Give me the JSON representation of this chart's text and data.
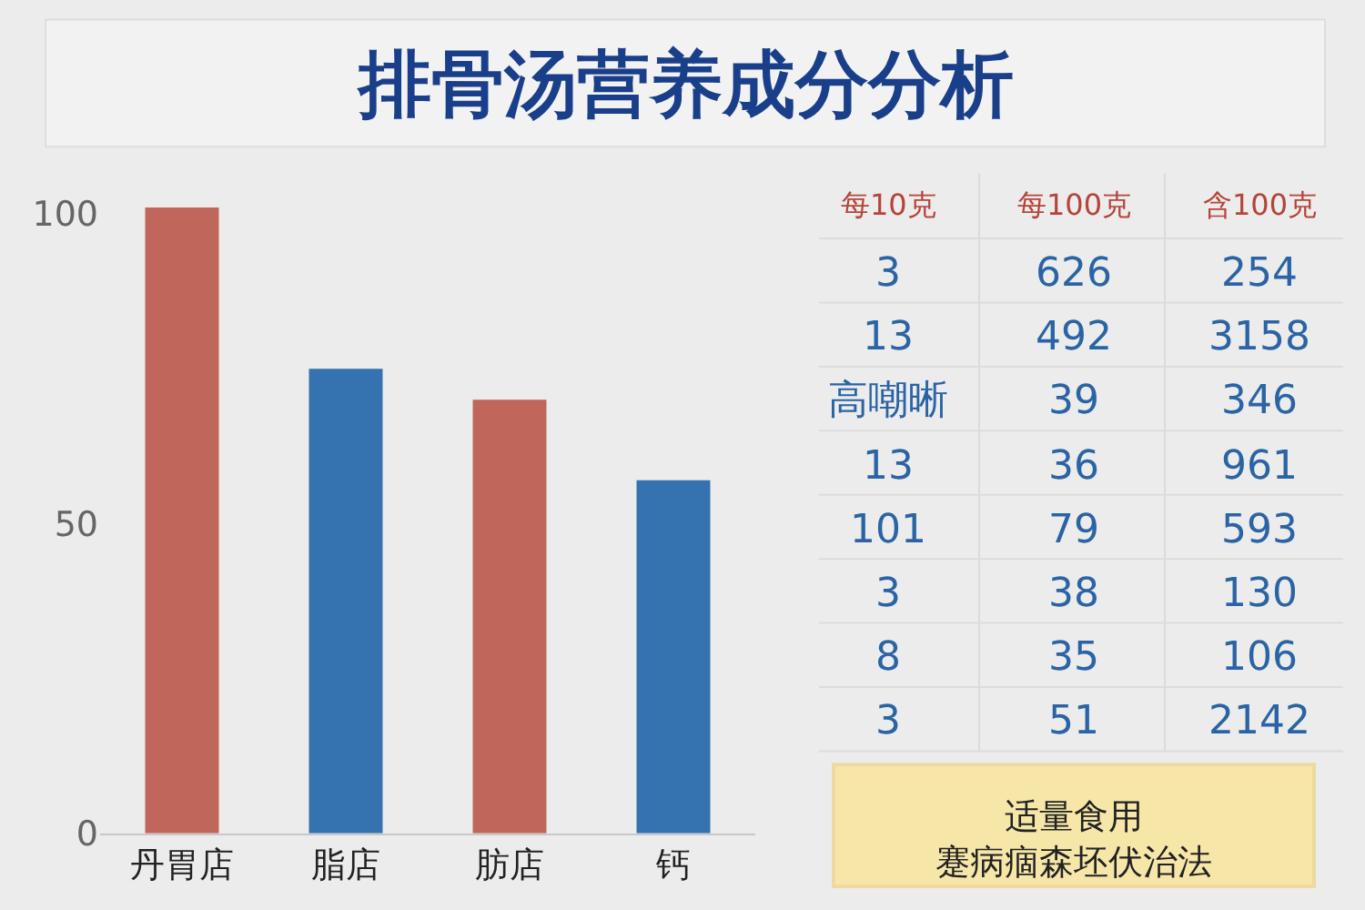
{
  "chart_data": [
    {
      "type": "bar",
      "title": "排骨汤营养成分分析",
      "categories": [
        "丹胃店",
        "脂店",
        "肪店",
        "钙"
      ],
      "values": [
        101,
        75,
        70,
        57
      ],
      "colors": [
        "#c0665a",
        "#3472b0",
        "#c0665a",
        "#3472b0"
      ],
      "ylim": [
        0,
        102
      ],
      "yticks": [
        0,
        50,
        100
      ],
      "grid": false
    },
    {
      "type": "other",
      "categories": [
        "每10克",
        "每100克",
        "含100克"
      ],
      "annotations": [
        "3",
        "626",
        "254",
        "13",
        "492",
        "3158",
        "高嘲晰",
        "39",
        "346",
        "13",
        "36",
        "961",
        "101",
        "79",
        "593",
        "3",
        "38",
        "130",
        "8",
        "35",
        "106",
        "3",
        "51",
        "2142"
      ],
      "title": "适量食用",
      "subtitle": "蹇病痼森坯伏治法"
    }
  ]
}
